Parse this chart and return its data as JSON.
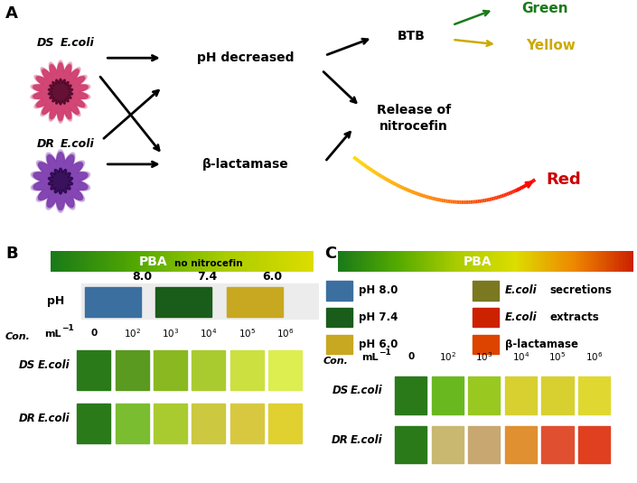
{
  "panel_A_label": "A",
  "panel_B_label": "B",
  "panel_C_label": "C",
  "green_text": "#1a7a1a",
  "yellow_text": "#ccaa00",
  "red_text": "#cc0000",
  "ph_colors_B": [
    "#3b6fa0",
    "#1a5c1a",
    "#c8a820"
  ],
  "ph_colors_C_left": [
    "#3b6fa0",
    "#1a5c1a",
    "#c8a820"
  ],
  "secretion_color": "#7a7820",
  "extract_color": "#cc2200",
  "beta_lac_color": "#dd4400",
  "B_DS_colors": [
    "#2a7a1a",
    "#5a9a20",
    "#8ab820",
    "#aacb30",
    "#cce040",
    "#ddee50"
  ],
  "B_DR_colors": [
    "#2a7a1a",
    "#7abd30",
    "#aacb30",
    "#ccc840",
    "#d8c840",
    "#e0d030"
  ],
  "C_DS_colors": [
    "#2a7a1a",
    "#6ab820",
    "#99c820",
    "#d8d030",
    "#d8d030",
    "#e0d830"
  ],
  "C_DR_colors": [
    "#2a7a1a",
    "#c8b870",
    "#c8a870",
    "#e09030",
    "#e05030",
    "#e04020"
  ],
  "DS_body_color": "#d04070",
  "DS_core_color": "#400020",
  "DR_body_color": "#8040b0",
  "DR_core_color": "#200040"
}
